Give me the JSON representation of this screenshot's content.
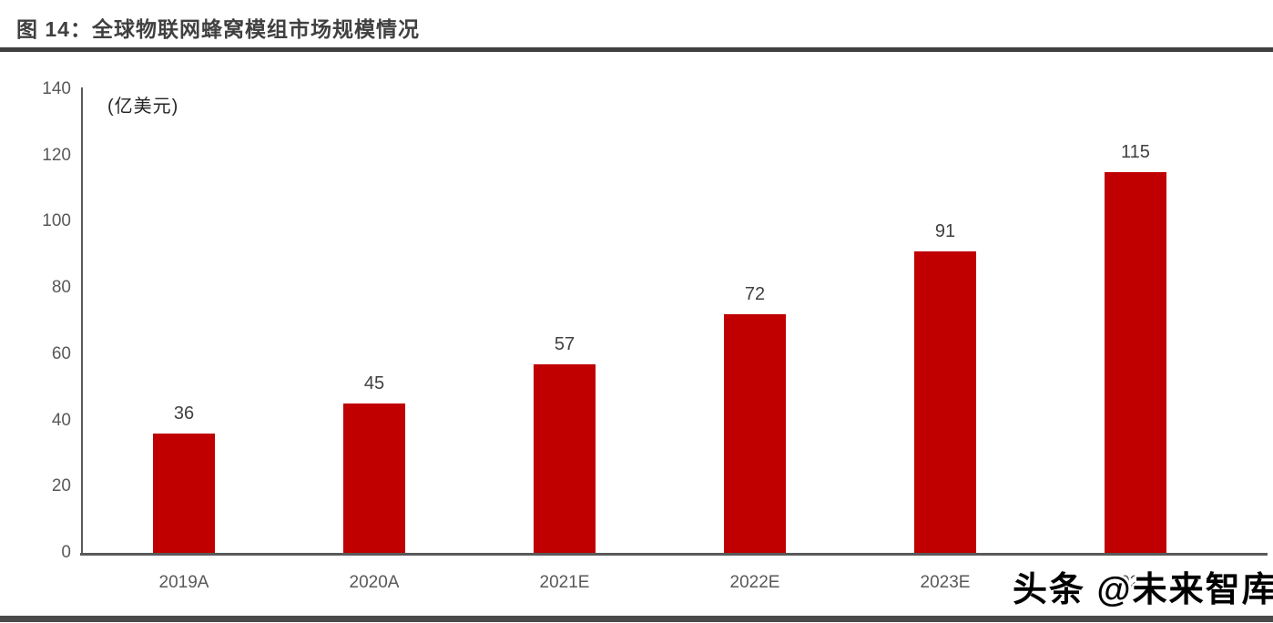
{
  "header": {
    "title": "图 14：全球物联网蜂窝模组市场规模情况"
  },
  "watermark": {
    "text": "头条 @未来智库"
  },
  "chart_data": {
    "type": "bar",
    "title": "图 14：全球物联网蜂窝模组市场规模情况",
    "unit_label": "(亿美元)",
    "categories": [
      "2019A",
      "2020A",
      "2021E",
      "2022E",
      "2023E",
      "2024E"
    ],
    "values": [
      36,
      45,
      57,
      72,
      91,
      115
    ],
    "ylabel": "",
    "xlabel": "",
    "ylim": [
      0,
      140
    ],
    "ytick_step": 20,
    "bar_color": "#c00000",
    "grid": false,
    "legend": null,
    "value_labels_shown": true
  },
  "colors": {
    "bar": "#c00000",
    "axis": "#595959",
    "title_text": "#404040",
    "tick_text": "#595959",
    "rule": "#404040"
  }
}
